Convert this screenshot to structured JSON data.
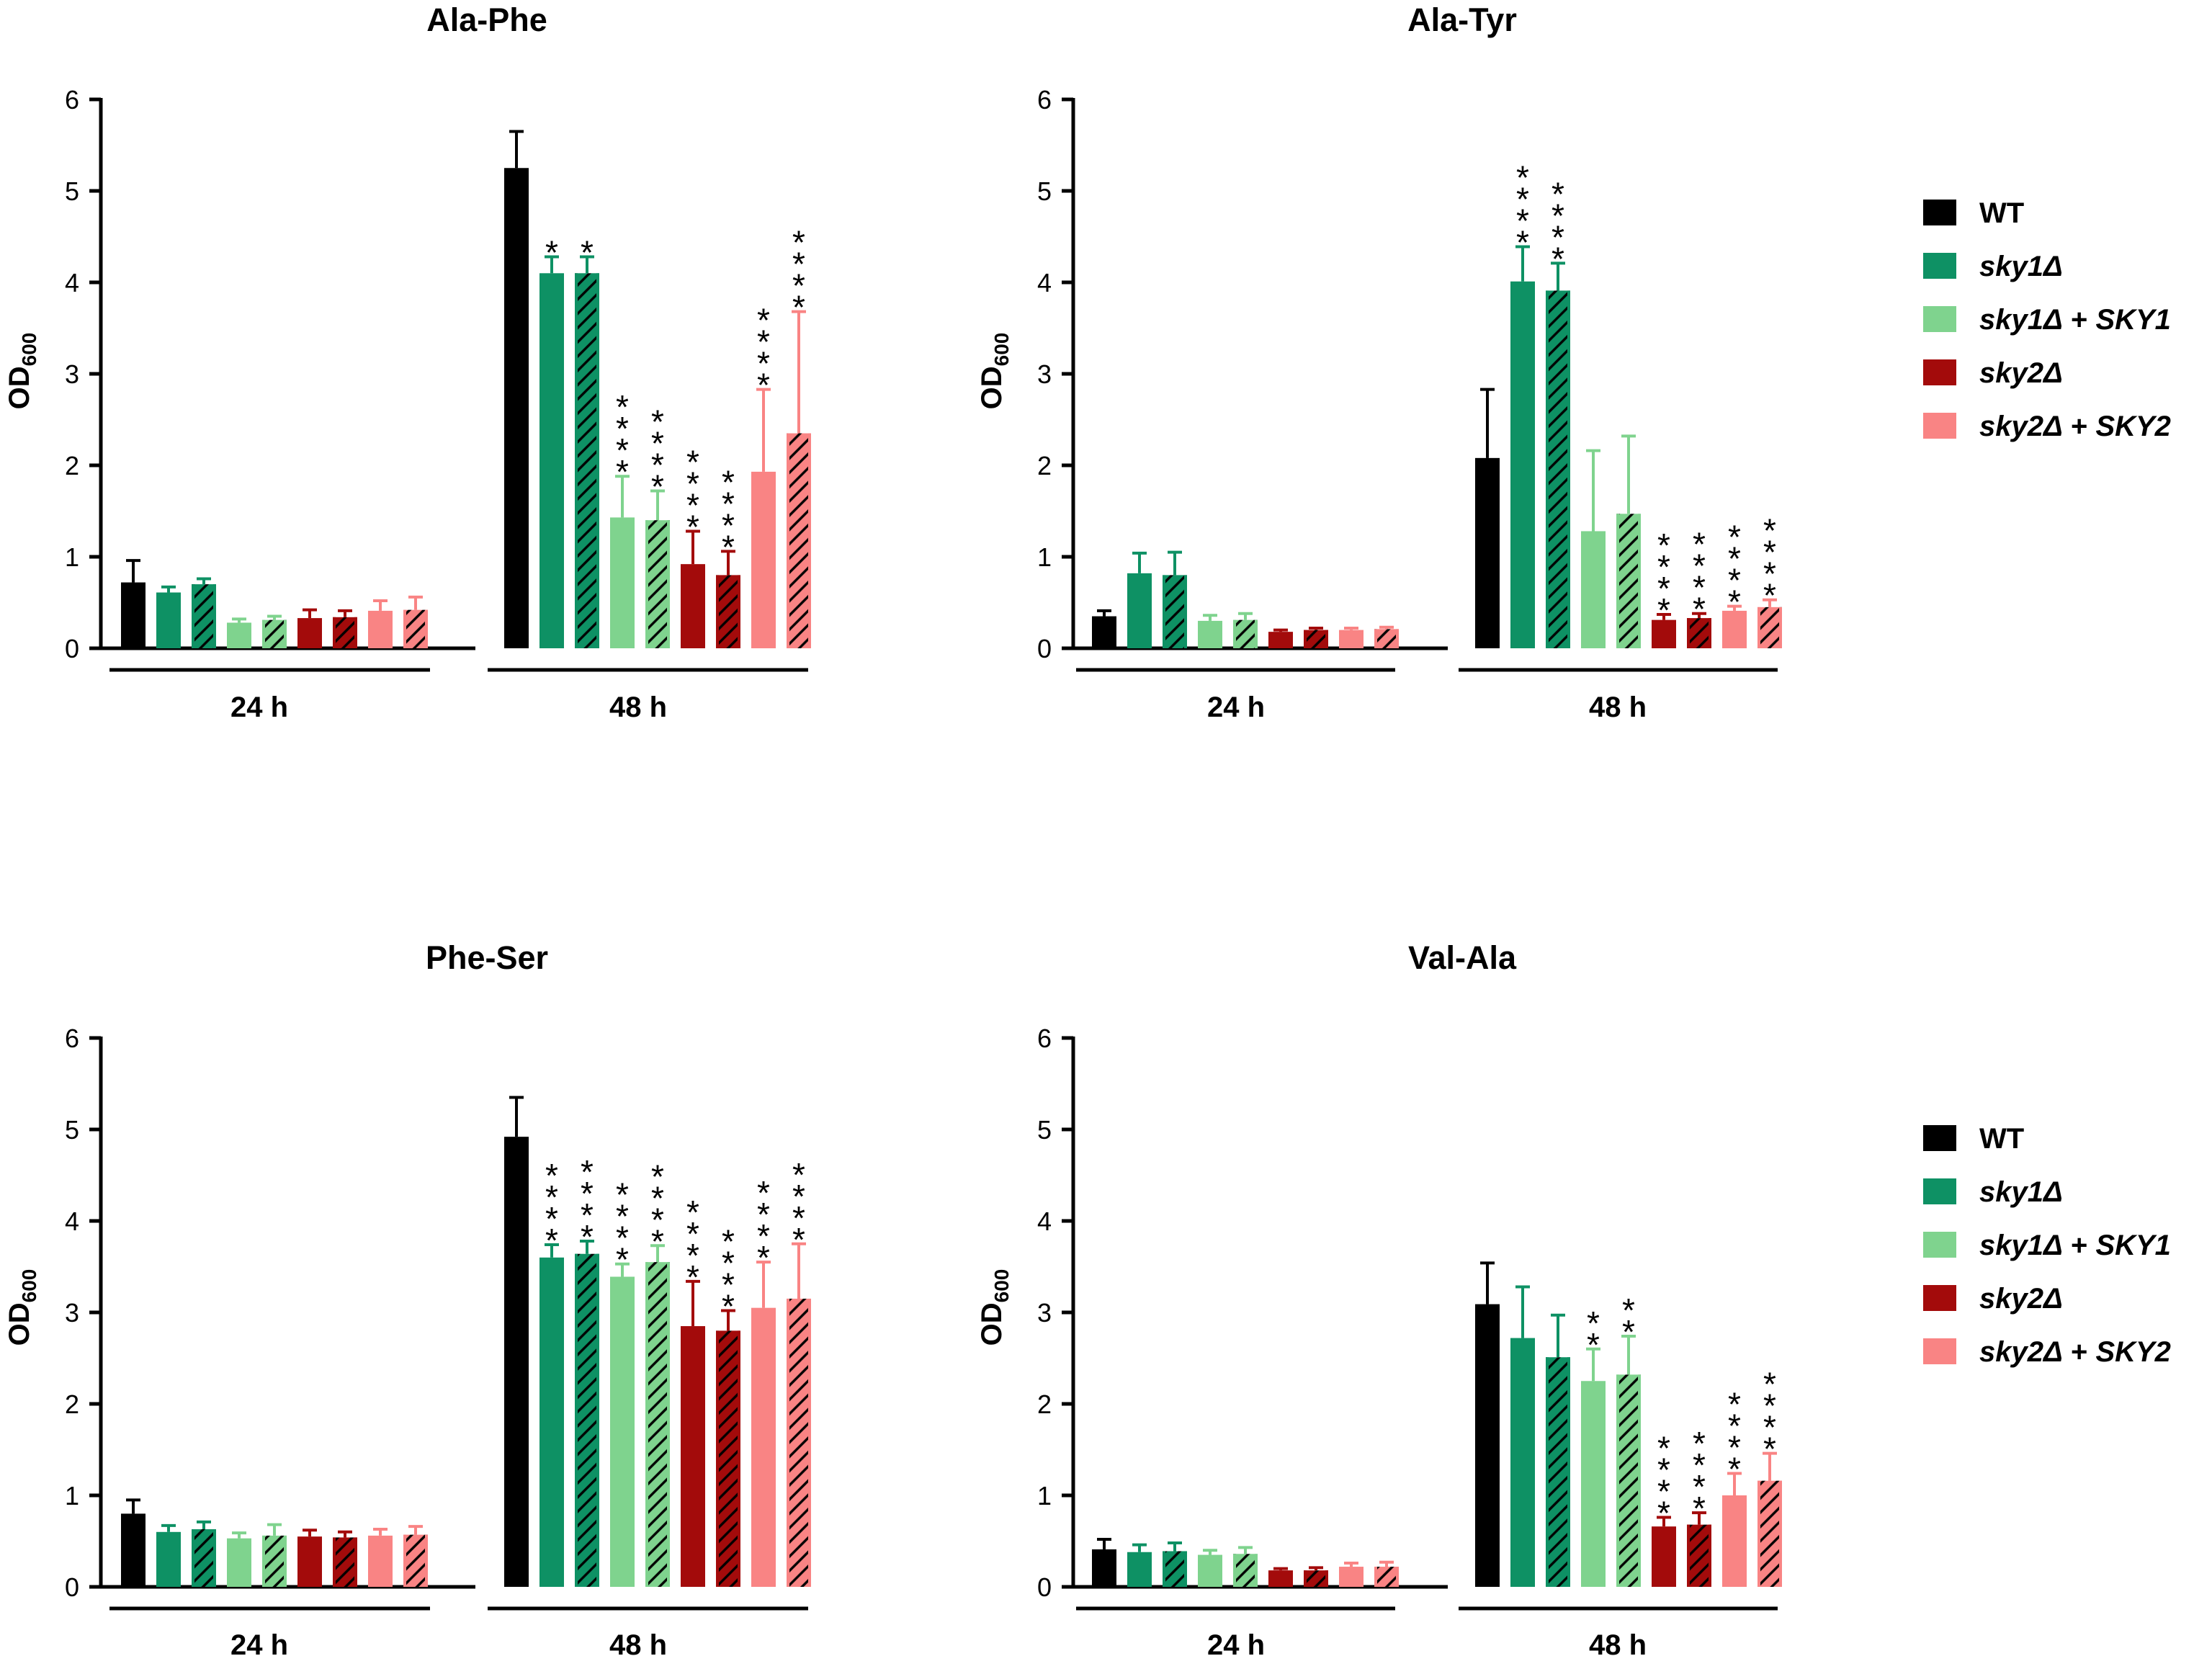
{
  "colors": {
    "WT": "#000000",
    "sky1": "#0E9164",
    "sky1_SKY1": "#7FD38E",
    "sky2": "#A30B0B",
    "sky2_SKY2": "#F98484",
    "axis": "#000000"
  },
  "legend": {
    "entries": [
      {
        "key": "WT",
        "base": "WT",
        "mid": "",
        "tail": ""
      },
      {
        "key": "sky1",
        "base": "sky1Δ",
        "mid": "",
        "tail": ""
      },
      {
        "key": "sky1_SKY1",
        "base": "sky1Δ",
        "mid": " + ",
        "tail": "SKY1"
      },
      {
        "key": "sky2",
        "base": "sky2Δ",
        "mid": "",
        "tail": ""
      },
      {
        "key": "sky2_SKY2",
        "base": "sky2Δ",
        "mid": " + ",
        "tail": "SKY2"
      }
    ]
  },
  "chart_data": [
    {
      "type": "bar",
      "title": "Ala-Phe",
      "ylabel_main": "OD",
      "ylabel_sub": "600",
      "ylim": [
        0,
        6
      ],
      "yticks": [
        "0",
        "1",
        "2",
        "3",
        "4",
        "5",
        "6"
      ],
      "groups": [
        "24 h",
        "48 h"
      ],
      "series_keys": [
        "WT",
        "sky1",
        "sky1",
        "sky1_SKY1",
        "sky1_SKY1",
        "sky2",
        "sky2",
        "sky2_SKY2",
        "sky2_SKY2"
      ],
      "hatched": [
        false,
        false,
        true,
        false,
        true,
        false,
        true,
        false,
        true
      ],
      "values": [
        [
          0.72,
          0.61,
          0.7,
          0.28,
          0.31,
          0.33,
          0.34,
          0.41,
          0.42
        ],
        [
          5.25,
          4.1,
          4.1,
          1.43,
          1.4,
          0.92,
          0.8,
          1.93,
          2.35
        ]
      ],
      "errors": [
        [
          0.24,
          0.06,
          0.06,
          0.04,
          0.04,
          0.09,
          0.07,
          0.11,
          0.14
        ],
        [
          0.4,
          0.18,
          0.18,
          0.45,
          0.32,
          0.36,
          0.26,
          0.9,
          1.33
        ]
      ],
      "significance": [
        [
          "",
          "",
          "",
          "",
          "",
          "",
          "",
          "",
          ""
        ],
        [
          "",
          "*",
          "*",
          "****",
          "****",
          "****",
          "****",
          "****",
          "****"
        ]
      ]
    },
    {
      "type": "bar",
      "title": "Ala-Tyr",
      "ylabel_main": "OD",
      "ylabel_sub": "600",
      "ylim": [
        0,
        6
      ],
      "yticks": [
        "0",
        "1",
        "2",
        "3",
        "4",
        "5",
        "6"
      ],
      "groups": [
        "24 h",
        "48 h"
      ],
      "series_keys": [
        "WT",
        "sky1",
        "sky1",
        "sky1_SKY1",
        "sky1_SKY1",
        "sky2",
        "sky2",
        "sky2_SKY2",
        "sky2_SKY2"
      ],
      "hatched": [
        false,
        false,
        true,
        false,
        true,
        false,
        true,
        false,
        true
      ],
      "values": [
        [
          0.35,
          0.82,
          0.8,
          0.3,
          0.31,
          0.18,
          0.2,
          0.2,
          0.21
        ],
        [
          2.08,
          4.01,
          3.91,
          1.28,
          1.47,
          0.31,
          0.33,
          0.41,
          0.45
        ]
      ],
      "errors": [
        [
          0.06,
          0.22,
          0.25,
          0.06,
          0.07,
          0.02,
          0.02,
          0.02,
          0.02
        ],
        [
          0.75,
          0.38,
          0.3,
          0.88,
          0.85,
          0.06,
          0.05,
          0.05,
          0.08
        ]
      ],
      "significance": [
        [
          "",
          "",
          "",
          "",
          "",
          "",
          "",
          "",
          ""
        ],
        [
          "",
          "****",
          "****",
          "",
          "",
          "****",
          "****",
          "****",
          "****"
        ]
      ]
    },
    {
      "type": "bar",
      "title": "Phe-Ser",
      "ylabel_main": "OD",
      "ylabel_sub": "600",
      "ylim": [
        0,
        6
      ],
      "yticks": [
        "0",
        "1",
        "2",
        "3",
        "4",
        "5",
        "6"
      ],
      "groups": [
        "24 h",
        "48 h"
      ],
      "series_keys": [
        "WT",
        "sky1",
        "sky1",
        "sky1_SKY1",
        "sky1_SKY1",
        "sky2",
        "sky2",
        "sky2_SKY2",
        "sky2_SKY2"
      ],
      "hatched": [
        false,
        false,
        true,
        false,
        true,
        false,
        true,
        false,
        true
      ],
      "values": [
        [
          0.8,
          0.6,
          0.63,
          0.53,
          0.56,
          0.55,
          0.54,
          0.56,
          0.57
        ],
        [
          4.92,
          3.6,
          3.64,
          3.39,
          3.55,
          2.85,
          2.8,
          3.05,
          3.15
        ]
      ],
      "errors": [
        [
          0.15,
          0.07,
          0.08,
          0.06,
          0.12,
          0.07,
          0.06,
          0.07,
          0.09
        ],
        [
          0.43,
          0.14,
          0.14,
          0.14,
          0.18,
          0.49,
          0.22,
          0.5,
          0.6
        ]
      ],
      "significance": [
        [
          "",
          "",
          "",
          "",
          "",
          "",
          "",
          "",
          ""
        ],
        [
          "",
          "****",
          "****",
          "****",
          "****",
          "****",
          "****",
          "****",
          "****"
        ]
      ]
    },
    {
      "type": "bar",
      "title": "Val-Ala",
      "ylabel_main": "OD",
      "ylabel_sub": "600",
      "ylim": [
        0,
        6
      ],
      "yticks": [
        "0",
        "1",
        "2",
        "3",
        "4",
        "5",
        "6"
      ],
      "groups": [
        "24 h",
        "48 h"
      ],
      "series_keys": [
        "WT",
        "sky1",
        "sky1",
        "sky1_SKY1",
        "sky1_SKY1",
        "sky2",
        "sky2",
        "sky2_SKY2",
        "sky2_SKY2"
      ],
      "hatched": [
        false,
        false,
        true,
        false,
        true,
        false,
        true,
        false,
        true
      ],
      "values": [
        [
          0.41,
          0.38,
          0.39,
          0.35,
          0.36,
          0.18,
          0.18,
          0.22,
          0.22
        ],
        [
          3.09,
          2.72,
          2.51,
          2.25,
          2.32,
          0.66,
          0.68,
          1.0,
          1.16
        ]
      ],
      "errors": [
        [
          0.11,
          0.08,
          0.09,
          0.05,
          0.07,
          0.02,
          0.03,
          0.04,
          0.05
        ],
        [
          0.45,
          0.56,
          0.46,
          0.35,
          0.42,
          0.1,
          0.13,
          0.24,
          0.3
        ]
      ],
      "significance": [
        [
          "",
          "",
          "",
          "",
          "",
          "",
          "",
          "",
          ""
        ],
        [
          "",
          "",
          "",
          "**",
          "**",
          "****",
          "****",
          "****",
          "****"
        ]
      ]
    }
  ]
}
